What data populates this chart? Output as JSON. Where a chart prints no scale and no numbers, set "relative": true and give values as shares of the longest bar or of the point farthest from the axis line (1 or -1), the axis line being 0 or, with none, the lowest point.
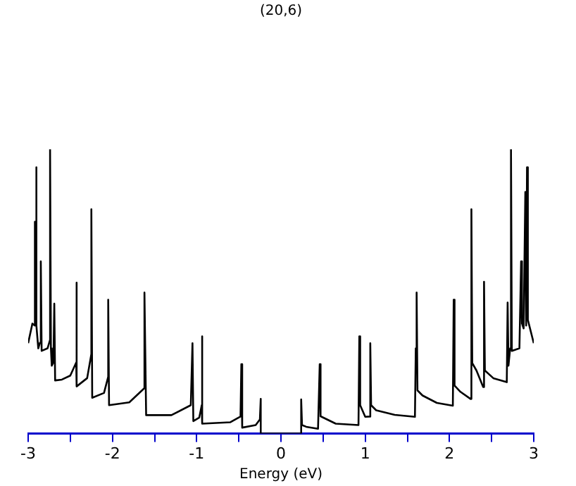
{
  "chart_data": {
    "type": "line",
    "title": "(20,6)",
    "xlabel": "Energy (eV)",
    "relative": true,
    "grid": false,
    "legend": false,
    "marker": "none",
    "line_style": "solid",
    "tick_labels": "x",
    "xlim": [
      -3,
      3
    ],
    "xticks": [
      -3,
      {
        "value": -2.5,
        "label": null
      },
      -2,
      {
        "value": -1.5,
        "label": null
      },
      -1,
      {
        "value": -0.5,
        "label": null
      },
      0,
      {
        "value": 0.5,
        "label": null
      },
      1,
      {
        "value": 1.5,
        "label": null
      },
      2,
      {
        "value": 2.5,
        "label": null
      },
      3
    ],
    "series": [
      {
        "color": "#000000",
        "x": [
          -3,
          -2.95,
          -2.92,
          -2.92,
          -2.91,
          -2.905,
          -2.9,
          -2.88,
          -2.86,
          -2.85,
          -2.84,
          -2.77,
          -2.74,
          -2.74,
          -2.73,
          -2.72,
          -2.7,
          -2.69,
          -2.68,
          -2.6,
          -2.5,
          -2.43,
          -2.43,
          -2.42,
          -2.3,
          -2.25,
          -2.25,
          -2.24,
          -2.1,
          -2.05,
          -2.05,
          -2.04,
          -1.8,
          -1.62,
          -1.62,
          -1.6,
          -1.3,
          -1.07,
          -1.05,
          -1.04,
          -0.97,
          -0.94,
          -0.94,
          -0.93,
          -0.6,
          -0.48,
          -0.47,
          -0.46,
          -0.3,
          -0.25,
          -0.24,
          -0.24,
          0.24,
          0.24,
          0.25,
          0.3,
          0.44,
          0.46,
          0.47,
          0.65,
          0.92,
          0.93,
          0.94,
          1.0,
          1.05,
          1.06,
          1.07,
          1.13,
          1.35,
          1.59,
          1.6,
          1.61,
          1.62,
          1.68,
          1.85,
          2.04,
          2.05,
          2.06,
          2.13,
          2.25,
          2.26,
          2.27,
          2.32,
          2.4,
          2.41,
          2.42,
          2.52,
          2.68,
          2.69,
          2.7,
          2.72,
          2.73,
          2.74,
          2.83,
          2.85,
          2.86,
          2.88,
          2.9,
          2.91,
          2.92,
          2.93,
          3
        ],
        "values": [
          0.318,
          0.387,
          0.38,
          0.745,
          0.4,
          0.937,
          0.38,
          0.3,
          0.32,
          0.606,
          0.291,
          0.3,
          0.33,
          1.0,
          0.3,
          0.239,
          0.25,
          0.457,
          0.187,
          0.19,
          0.204,
          0.25,
          0.531,
          0.166,
          0.195,
          0.28,
          0.789,
          0.126,
          0.143,
          0.2,
          0.471,
          0.1,
          0.11,
          0.16,
          0.496,
          0.065,
          0.065,
          0.1,
          0.318,
          0.044,
          0.056,
          0.1,
          0.342,
          0.035,
          0.04,
          0.06,
          0.244,
          0.021,
          0.03,
          0.05,
          0.122,
          0,
          0,
          0.12,
          0.03,
          0.024,
          0.017,
          0.244,
          0.061,
          0.035,
          0.03,
          0.342,
          0.1,
          0.059,
          0.06,
          0.318,
          0.1,
          0.082,
          0.066,
          0.059,
          0.3,
          0.496,
          0.152,
          0.134,
          0.108,
          0.098,
          0.471,
          0.169,
          0.147,
          0.122,
          0.789,
          0.248,
          0.222,
          0.164,
          0.534,
          0.222,
          0.195,
          0.181,
          0.461,
          0.239,
          0.3,
          1.0,
          0.291,
          0.3,
          0.606,
          0.387,
          0.37,
          0.85,
          0.38,
          0.937,
          0.4,
          0.318
        ]
      }
    ]
  }
}
